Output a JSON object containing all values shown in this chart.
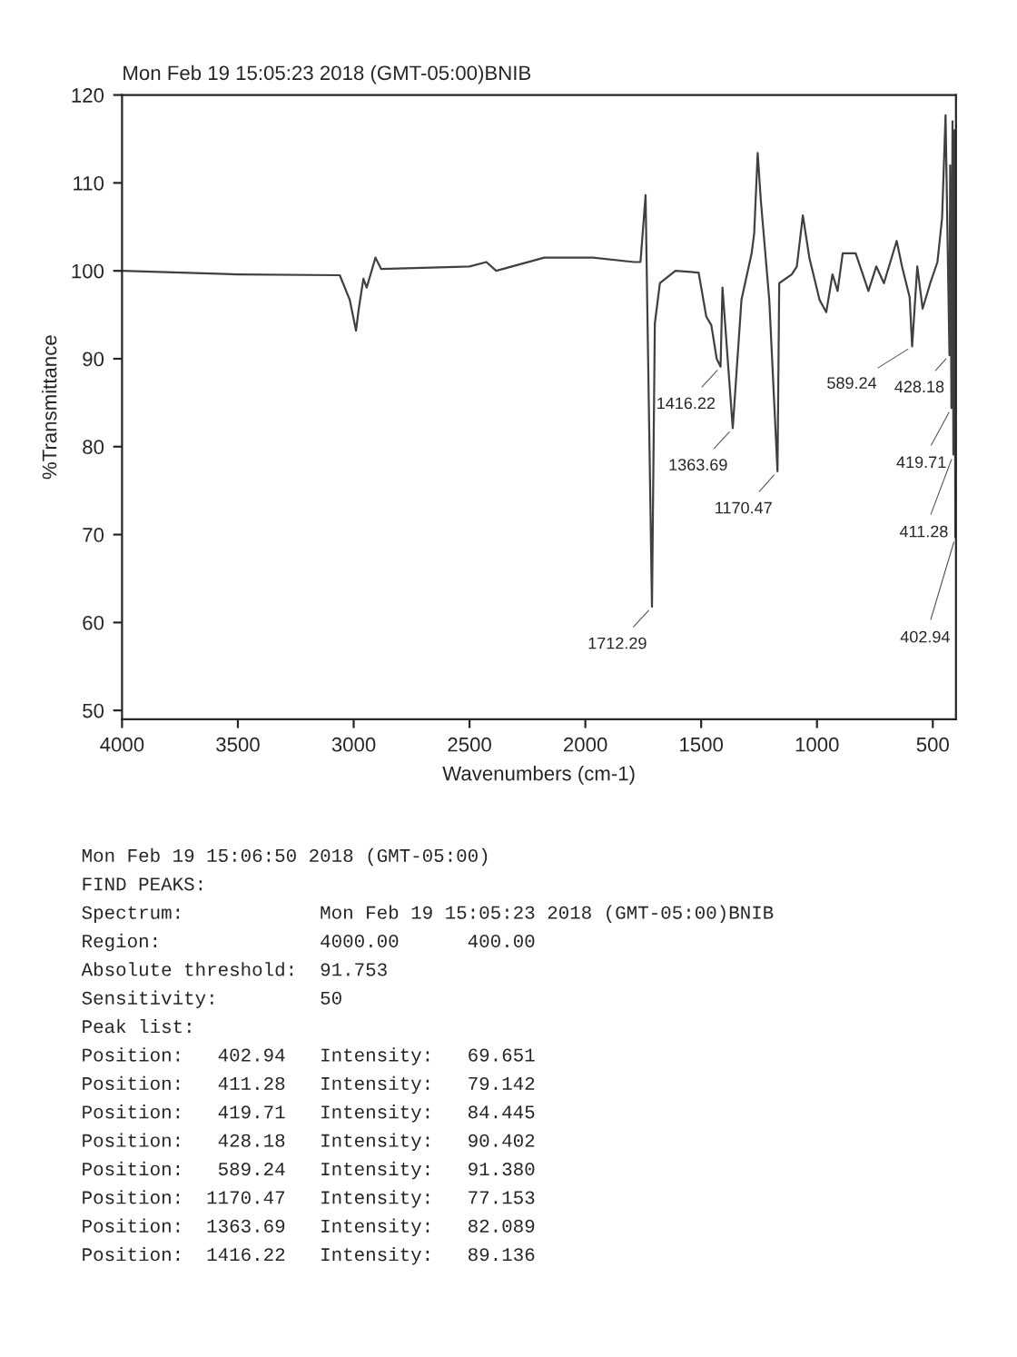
{
  "chart_data": {
    "type": "line",
    "title": "Mon Feb 19 15:05:23 2018 (GMT-05:00)BNIB",
    "xlabel": "Wavenumbers (cm-1)",
    "ylabel": "%Transmittance",
    "series": [
      {
        "color": "#404040",
        "x": [
          4000,
          3500,
          3060,
          3017,
          2990,
          2978,
          2958,
          2944,
          2927,
          2906,
          2881,
          2500,
          2427,
          2385,
          2177,
          1967,
          1789,
          1762,
          1740,
          1712.29,
          1700,
          1678,
          1611,
          1511,
          1478,
          1456,
          1433,
          1416.22,
          1408,
          1363.69,
          1326,
          1282,
          1271,
          1256,
          1243,
          1206,
          1170.47,
          1163,
          1109,
          1087,
          1061,
          1033,
          989,
          960,
          933,
          911,
          889,
          833,
          778,
          744,
          711,
          656,
          633,
          600,
          589.24,
          567,
          544,
          511,
          480,
          460,
          445,
          428.18,
          425,
          419.71,
          415,
          411.28,
          406,
          402.94,
          400
        ],
        "values": [
          100,
          99.6,
          99.5,
          96.7,
          93.2,
          95.7,
          99.1,
          98.1,
          99.6,
          101.5,
          100.2,
          100.5,
          101,
          100,
          101.5,
          101.5,
          101,
          101,
          108.6,
          61.8,
          94,
          98.6,
          100,
          99.8,
          94.8,
          93.8,
          90,
          89.1,
          98.1,
          82.1,
          96.7,
          102,
          104.3,
          113.4,
          108.2,
          96.7,
          77.2,
          98.6,
          99.6,
          100.5,
          106.3,
          101.5,
          96.7,
          95.3,
          99.6,
          97.7,
          102,
          102,
          97.7,
          100.5,
          98.6,
          103.4,
          100.5,
          97,
          91.4,
          100.5,
          95.7,
          98.6,
          101,
          106,
          117.7,
          90.4,
          112,
          84.4,
          117,
          79.1,
          116,
          69.7,
          100
        ]
      }
    ],
    "xlim": [
      4000,
      400
    ],
    "ylim": [
      49,
      120
    ],
    "xticks": [
      4000,
      3500,
      3000,
      2500,
      2000,
      1500,
      1000,
      500
    ],
    "yticks": [
      50,
      60,
      70,
      80,
      90,
      100,
      110,
      120
    ],
    "grid": false,
    "marker": "none",
    "line_style": "solid",
    "annotations": [
      {
        "text": "1712.29",
        "x": 1712.29,
        "y": 61.8
      },
      {
        "text": "1416.22",
        "x": 1416.22,
        "y": 89.1
      },
      {
        "text": "1363.69",
        "x": 1363.69,
        "y": 82.1
      },
      {
        "text": "1170.47",
        "x": 1170.47,
        "y": 77.2
      },
      {
        "text": "589.24",
        "x": 589.24,
        "y": 91.4
      },
      {
        "text": "428.18",
        "x": 428.18,
        "y": 90.4
      },
      {
        "text": "419.71",
        "x": 419.71,
        "y": 84.4
      },
      {
        "text": "411.28",
        "x": 411.28,
        "y": 79.1
      },
      {
        "text": "402.94",
        "x": 402.94,
        "y": 69.7
      },
      "Mon Feb 19 15:06:50 2018 (GMT-05:00)",
      "FIND PEAKS:",
      "Spectrum:            Mon Feb 19 15:05:23 2018 (GMT-05:00)BNIB",
      "Region:              4000.00      400.00",
      "Absolute threshold:  91.753",
      "Sensitivity:         50",
      "Peak list:",
      "Position:   402.94   Intensity:   69.651",
      "Position:   411.28   Intensity:   79.142",
      "Position:   419.71   Intensity:   84.445",
      "Position:   428.18   Intensity:   90.402",
      "Position:   589.24   Intensity:   91.380",
      "Position:  1170.47   Intensity:   77.153",
      "Position:  1363.69   Intensity:   82.089",
      "Position:  1416.22   Intensity:   89.136"
    ]
  }
}
